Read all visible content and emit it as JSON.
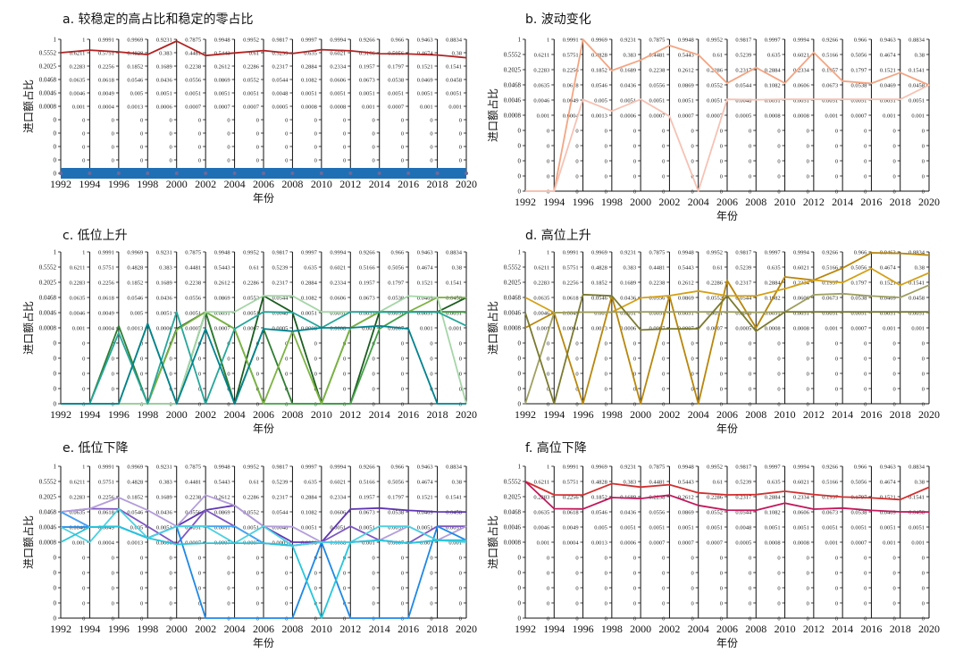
{
  "figure": {
    "xlabel": "年份",
    "ylabel": "进口额占比"
  },
  "ticks": {
    "left_labels": [
      "1",
      "0.5552",
      "0.2025",
      "0.0468",
      "0.0046",
      "0.0008",
      "0",
      "0",
      "0",
      "0",
      "0"
    ],
    "years": [
      "1992",
      "1994",
      "1996",
      "1998",
      "2000",
      "2002",
      "2004",
      "2006",
      "2008",
      "2010",
      "2012",
      "2014",
      "2016",
      "2018",
      "2020"
    ],
    "column_labels": [
      {
        "year": "1994",
        "values": [
          "1",
          "0.6211",
          "0.2283",
          "0.0635",
          "0.0046",
          "0.001",
          "0",
          "0",
          "0",
          "0",
          "0"
        ]
      },
      {
        "year": "1996",
        "values": [
          "0.9991",
          "0.5751",
          "0.2256",
          "0.0618",
          "0.0049",
          "0.0004",
          "0",
          "0",
          "0",
          "0",
          "0"
        ]
      },
      {
        "year": "1998",
        "values": [
          "0.9969",
          "0.4828",
          "0.1852",
          "0.0546",
          "0.005",
          "0.0013",
          "0",
          "0",
          "0",
          "0",
          "0"
        ]
      },
      {
        "year": "2000",
        "values": [
          "0.9231",
          "0.383",
          "0.1689",
          "0.0436",
          "0.0051",
          "0.0006",
          "0",
          "0",
          "0",
          "0",
          "0"
        ]
      },
      {
        "year": "2002",
        "values": [
          "0.7875",
          "0.4481",
          "0.2238",
          "0.0556",
          "0.0051",
          "0.0007",
          "0",
          "0",
          "0",
          "0",
          "0"
        ]
      },
      {
        "year": "2004",
        "values": [
          "0.9948",
          "0.5443",
          "0.2612",
          "0.0869",
          "0.0051",
          "0.0007",
          "0",
          "0",
          "0",
          "0",
          "0"
        ]
      },
      {
        "year": "2006",
        "values": [
          "0.9952",
          "0.61",
          "0.2286",
          "0.0552",
          "0.0051",
          "0.0007",
          "0",
          "0",
          "0",
          "0",
          "0"
        ]
      },
      {
        "year": "2008",
        "values": [
          "0.9817",
          "0.5239",
          "0.2317",
          "0.0544",
          "0.0048",
          "0.0005",
          "0",
          "0",
          "0",
          "0",
          "0"
        ]
      },
      {
        "year": "2010",
        "values": [
          "0.9997",
          "0.635",
          "0.2884",
          "0.1082",
          "0.0051",
          "0.0008",
          "0",
          "0",
          "0",
          "0",
          "0"
        ]
      },
      {
        "year": "2012",
        "values": [
          "0.9994",
          "0.6021",
          "0.2334",
          "0.0606",
          "0.0051",
          "0.0008",
          "0",
          "0",
          "0",
          "0",
          "0"
        ]
      },
      {
        "year": "2014",
        "values": [
          "0.9266",
          "0.5166",
          "0.1957",
          "0.0673",
          "0.0051",
          "0.001",
          "0",
          "0",
          "0",
          "0",
          "0"
        ]
      },
      {
        "year": "2016",
        "values": [
          "0.966",
          "0.5056",
          "0.1797",
          "0.0538",
          "0.0051",
          "0.0007",
          "0",
          "0",
          "0",
          "0",
          "0"
        ]
      },
      {
        "year": "2018",
        "values": [
          "0.9463",
          "0.4674",
          "0.1521",
          "0.0469",
          "0.0051",
          "0.001",
          "0",
          "0",
          "0",
          "0",
          "0"
        ]
      },
      {
        "year": "2020",
        "values": [
          "0.8834",
          "0.38",
          "0.1541",
          "0.0458",
          "0.0051",
          "0.001",
          "0",
          "0",
          "0",
          "0",
          "0"
        ]
      }
    ]
  },
  "chart_data": [
    {
      "type": "line",
      "title": "a. 较稳定的高占比和稳定的零占比",
      "xlabel": "年份",
      "ylabel": "进口额占比",
      "x": [
        1992,
        1994,
        1996,
        1998,
        2000,
        2002,
        2004,
        2006,
        2008,
        2010,
        2012,
        2014,
        2016,
        2018,
        2020
      ],
      "y_scale": "categorical-level (each vertical axis uses its own printed tick values)",
      "series": [
        {
          "color": "#b22222",
          "values": [
            0.5552,
            0.6211,
            0.5751,
            0.4828,
            0.9231,
            0.4481,
            0.5443,
            0.61,
            0.5239,
            0.635,
            0.6021,
            0.5166,
            0.5056,
            0.4674,
            0.38
          ]
        },
        {
          "color": "#1f6fb5",
          "band": true,
          "values": [
            0,
            0,
            0,
            0,
            0,
            0,
            0,
            0,
            0,
            0,
            0,
            0,
            0,
            0,
            0
          ]
        }
      ]
    },
    {
      "type": "line",
      "title": "b. 波动变化",
      "xlabel": "年份",
      "ylabel": "进口额占比",
      "x": [
        1992,
        1994,
        1996,
        1998,
        2000,
        2002,
        2004,
        2006,
        2008,
        2010,
        2012,
        2014,
        2016,
        2018,
        2020
      ],
      "series": [
        {
          "color": "#f4a582",
          "values": [
            0,
            0,
            0.9991,
            0.1852,
            0.383,
            0.7875,
            0.5443,
            0.0552,
            0.2317,
            0.0551,
            0.6021,
            0.0673,
            0.0538,
            0.1521,
            0.0458
          ]
        },
        {
          "color": "#f6c2b4",
          "values": [
            0,
            0,
            0.0049,
            0.0013,
            0.0051,
            0.0007,
            0,
            0.0051,
            0.0048,
            0.0051,
            0.0051,
            0.0051,
            0.0051,
            0.0051,
            0.0458
          ]
        }
      ]
    },
    {
      "type": "line",
      "title": "c. 低位上升",
      "xlabel": "年份",
      "ylabel": "进口额占比",
      "x": [
        1992,
        1994,
        1996,
        1998,
        2000,
        2002,
        2004,
        2006,
        2008,
        2010,
        2012,
        2014,
        2016,
        2018,
        2020
      ],
      "series": [
        {
          "color": "#1b5e20",
          "values": [
            0,
            0,
            0,
            0,
            0.0007,
            0.0051,
            0,
            0.0552,
            0.0048,
            0,
            0,
            0.0051,
            0.0051,
            0.0051,
            0.0458
          ]
        },
        {
          "color": "#2e7d32",
          "values": [
            0,
            0,
            0.001,
            0,
            0,
            0.0051,
            0,
            0.0007,
            0,
            0,
            0.0008,
            0.0051,
            0.0051,
            0.0051,
            0.0051
          ]
        },
        {
          "color": "#43a047",
          "values": [
            0,
            0,
            0,
            0.0013,
            0,
            0.0051,
            0.0007,
            0,
            0,
            0,
            0,
            0.0007,
            0.0051,
            0.0051,
            0.0051
          ]
        },
        {
          "color": "#7cb342",
          "values": [
            0,
            0,
            0,
            0,
            0.0006,
            0.0051,
            0.0007,
            0,
            0.0005,
            0,
            0.0008,
            0.0051,
            0.0051,
            0.0469,
            0.0458
          ]
        },
        {
          "color": "#a5d6a7",
          "values": [
            0,
            0,
            0,
            0,
            0,
            0.0051,
            0.0051,
            0.0552,
            0.0544,
            0.0051,
            0.0051,
            0.0051,
            0.0538,
            0.0469,
            0
          ]
        },
        {
          "color": "#26a69a",
          "values": [
            0,
            0,
            0.0004,
            0,
            0.0051,
            0,
            0.0007,
            0.0051,
            0.0048,
            0.0008,
            0.0051,
            0.0051,
            0.0051,
            0.0051,
            0.001
          ]
        },
        {
          "color": "#00838f",
          "values": [
            0,
            0,
            0,
            0.0013,
            0,
            0.0007,
            0,
            0.0007,
            0.0005,
            0.0008,
            0.0008,
            0.001,
            0.0007,
            0,
            0
          ]
        }
      ]
    },
    {
      "type": "line",
      "title": "d. 高位上升",
      "xlabel": "年份",
      "ylabel": "进口额占比",
      "x": [
        1992,
        1994,
        1996,
        1998,
        2000,
        2002,
        2004,
        2006,
        2008,
        2010,
        2012,
        2014,
        2016,
        2018,
        2020
      ],
      "series": [
        {
          "color": "#b8860b",
          "values": [
            0.0008,
            0.0046,
            0,
            0.0546,
            0,
            0.0556,
            0,
            0.2286,
            0.0008,
            0.2884,
            0.2334,
            0.5166,
            0.966,
            0.9463,
            0.8834
          ]
        },
        {
          "color": "#d4a017",
          "values": [
            0.0468,
            0.0046,
            0.0049,
            0.005,
            0.0436,
            0.0556,
            0.0869,
            0.0552,
            0.0544,
            0.1082,
            0.2334,
            0.1957,
            0.5056,
            0.1521,
            0.38
          ]
        },
        {
          "color": "#9ea060",
          "values": [
            0,
            0.0046,
            0.0049,
            0.005,
            0.0051,
            0.0051,
            0.0051,
            0.0051,
            0.0048,
            0.0051,
            0.0606,
            0.0673,
            0.0538,
            0.0469,
            0.1541
          ]
        },
        {
          "color": "#7a7a30",
          "values": [
            0.0046,
            0,
            0.0618,
            0.0546,
            0.0006,
            0.0007,
            0.0007,
            0.0552,
            0.0005,
            0.0051,
            0.0051,
            0.0051,
            0.0051,
            0.0051,
            0.0051
          ]
        }
      ]
    },
    {
      "type": "line",
      "title": "e. 低位下降",
      "xlabel": "年份",
      "ylabel": "进口额占比",
      "x": [
        1992,
        1994,
        1996,
        1998,
        2000,
        2002,
        2004,
        2006,
        2008,
        2010,
        2012,
        2014,
        2016,
        2018,
        2020
      ],
      "series": [
        {
          "color": "#5e35b1",
          "values": [
            0.0468,
            0.0046,
            0.0049,
            0.0013,
            0.0051,
            0.0556,
            0.0869,
            0.0051,
            0.0008,
            0.0008,
            0.0606,
            0.0673,
            0.0538,
            0.0469,
            0.0458
          ]
        },
        {
          "color": "#7e57c2",
          "values": [
            0.0468,
            0.0635,
            0.0618,
            0.005,
            0.0006,
            0.0556,
            0.0051,
            0.0007,
            0.0005,
            0.0008,
            0.0051,
            0.001,
            0.0007,
            0.0051,
            0.0051
          ]
        },
        {
          "color": "#b39ddb",
          "values": [
            0.0468,
            0.0635,
            0.1852,
            0.0546,
            0.0051,
            0.2238,
            0.0869,
            0.0051,
            0.0048,
            0.0008,
            0.0008,
            0.001,
            0.0051,
            0.001,
            0.0051
          ]
        },
        {
          "color": "#1e88e5",
          "values": [
            0.0046,
            0.0046,
            0.0049,
            0.0013,
            0.0051,
            0,
            0,
            0,
            0,
            0.0008,
            0,
            0,
            0,
            0.0051,
            0.001
          ]
        },
        {
          "color": "#42a5f5",
          "values": [
            0.0468,
            0.0046,
            0.0049,
            0.0013,
            0.0051,
            0.0051,
            0.0051,
            0.0007,
            0.0005,
            0.0008,
            0.0008,
            0.001,
            0.0007,
            0.001,
            0.001
          ]
        },
        {
          "color": "#4dd0e1",
          "values": [
            0.0046,
            0.0008,
            0.0618,
            0.0013,
            0.0051,
            0.0051,
            0.0007,
            0.0051,
            0.0005,
            0.0008,
            0.0008,
            0.0051,
            0.0051,
            0.001,
            0.0008
          ]
        },
        {
          "color": "#26c6da",
          "values": [
            0.0008,
            0.0046,
            0.0049,
            0.0013,
            0.0006,
            0.0007,
            0.0007,
            0.0007,
            0.0005,
            0,
            0.0008,
            0.001,
            0.0007,
            0.001,
            0.001
          ]
        }
      ]
    },
    {
      "type": "line",
      "title": "f. 高位下降",
      "xlabel": "年份",
      "ylabel": "进口额占比",
      "x": [
        1992,
        1994,
        1996,
        1998,
        2000,
        2002,
        2004,
        2006,
        2008,
        2010,
        2012,
        2014,
        2016,
        2018,
        2020
      ],
      "series": [
        {
          "color": "#d32f2f",
          "values": [
            0.5552,
            0.2283,
            0.2256,
            0.4828,
            0.383,
            0.4481,
            0.2612,
            0.2286,
            0.2317,
            0.2884,
            0.2334,
            0.1957,
            0.1797,
            0.1521,
            0.38
          ]
        },
        {
          "color": "#c2185b",
          "values": [
            0.5552,
            0.0635,
            0.0618,
            0.1852,
            0.1689,
            0.2238,
            0.0869,
            0.0552,
            0.0544,
            0.1082,
            0.0606,
            0.0673,
            0.0538,
            0.0469,
            0.0458
          ]
        }
      ]
    }
  ]
}
